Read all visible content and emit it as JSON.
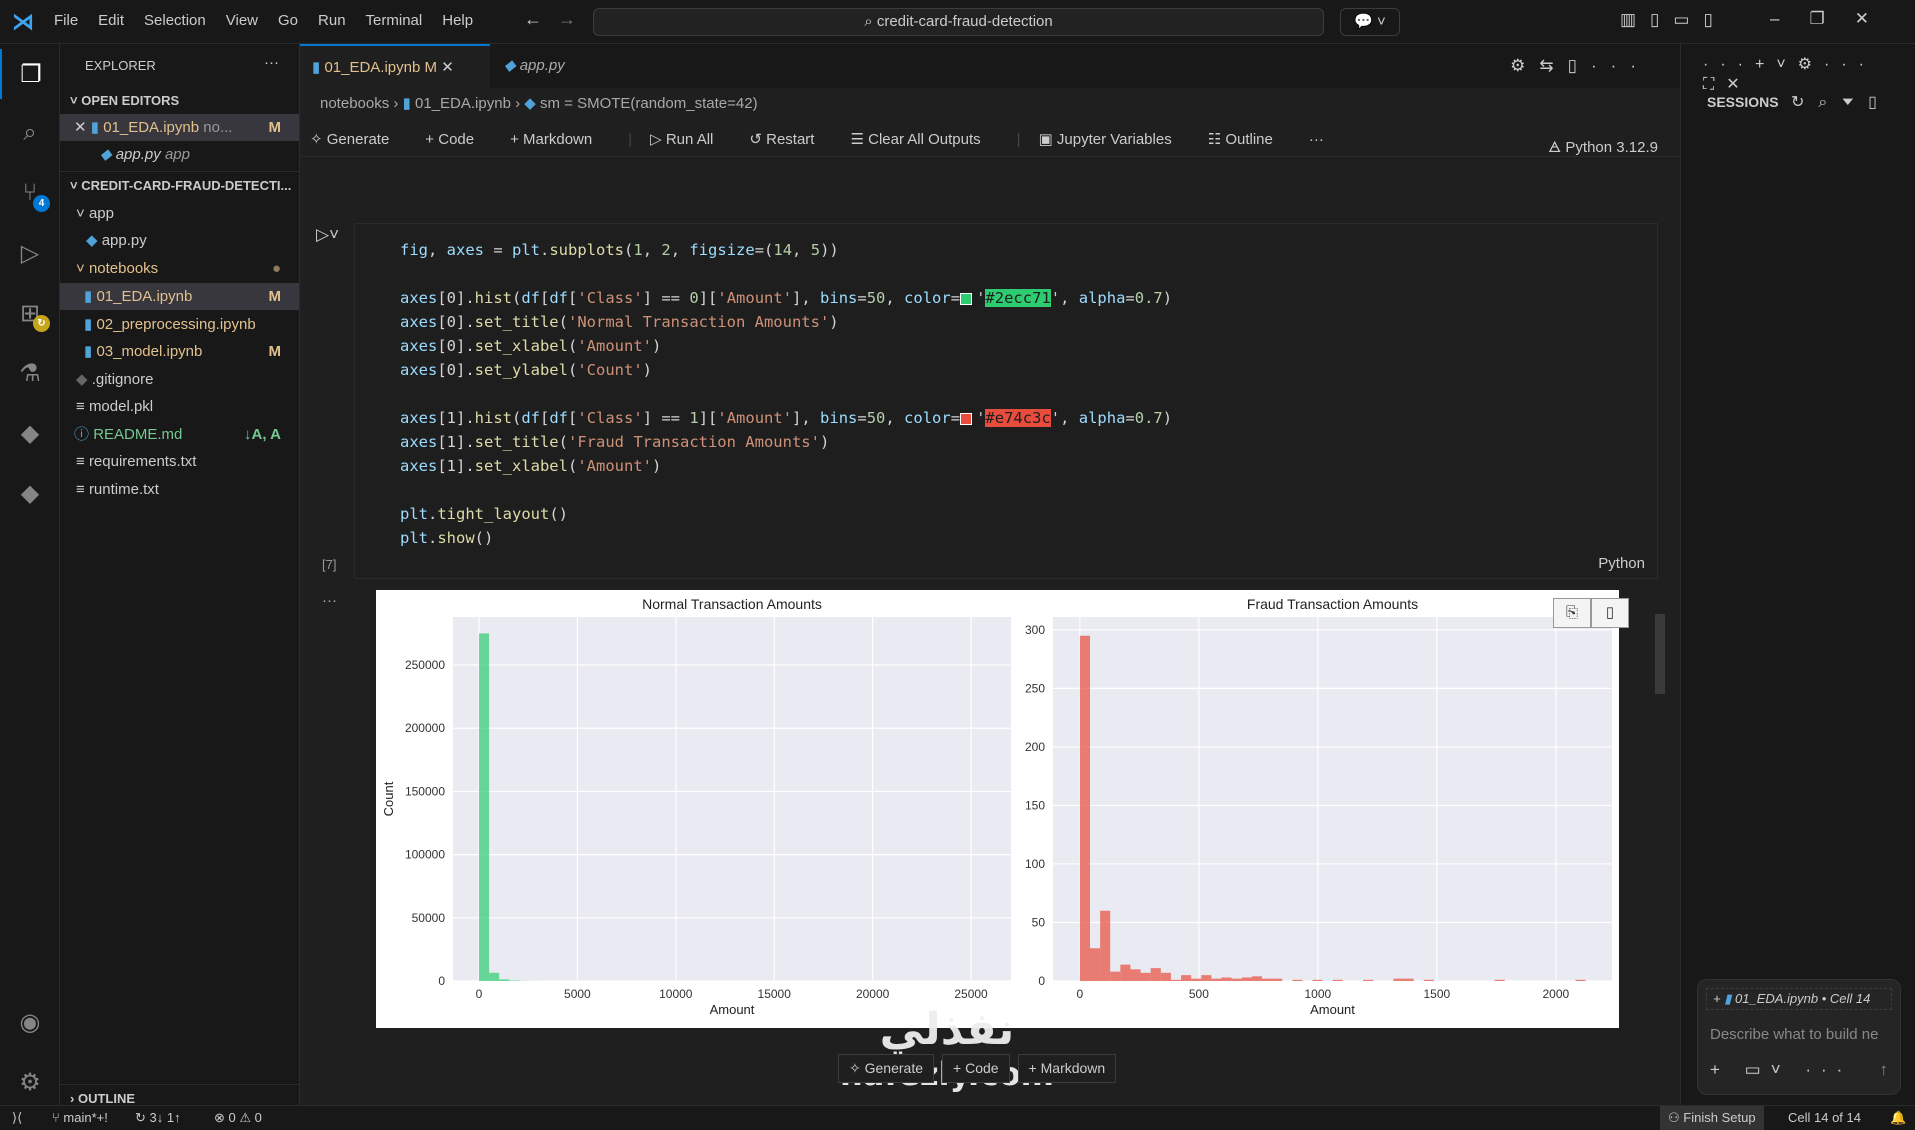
{
  "menu": [
    "File",
    "Edit",
    "Selection",
    "View",
    "Go",
    "Run",
    "Terminal",
    "Help"
  ],
  "search": "credit-card-fraud-detection",
  "explorer": {
    "title": "EXPLORER",
    "open_editors": "OPEN EDITORS",
    "open": [
      {
        "name": "01_EDA.ipynb",
        "desc": "no...",
        "badge": "M"
      },
      {
        "name": "app.py",
        "desc": "app"
      }
    ],
    "project": "CREDIT-CARD-FRAUD-DETECTI...",
    "tree": [
      {
        "name": "app",
        "type": "folder"
      },
      {
        "name": "app.py",
        "type": "py"
      },
      {
        "name": "notebooks",
        "type": "folder"
      },
      {
        "name": "01_EDA.ipynb",
        "badge": "M"
      },
      {
        "name": "02_preprocessing.ipynb"
      },
      {
        "name": "03_model.ipynb",
        "badge": "M"
      },
      {
        "name": ".gitignore"
      },
      {
        "name": "model.pkl"
      },
      {
        "name": "README.md",
        "badge": "↓A, A"
      },
      {
        "name": "requirements.txt"
      },
      {
        "name": "runtime.txt"
      }
    ],
    "outline": "OUTLINE",
    "scm_badge": "4"
  },
  "tabs": [
    {
      "label": "01_EDA.ipynb",
      "badge": "M"
    },
    {
      "label": "app.py"
    }
  ],
  "breadcrumb": [
    "notebooks",
    "01_EDA.ipynb",
    "sm = SMOTE(random_state=42)"
  ],
  "toolbar": {
    "generate": "Generate",
    "code": "Code",
    "markdown": "Markdown",
    "run_all": "Run All",
    "restart": "Restart",
    "clear": "Clear All Outputs",
    "vars": "Jupyter Variables",
    "outline": "Outline",
    "kernel": "Python 3.12.9"
  },
  "cell": {
    "exec": "[7]",
    "lang": "Python",
    "lines": [
      [
        [
          "fig",
          "v"
        ],
        [
          ", ",
          "o"
        ],
        [
          "axes",
          "v"
        ],
        [
          " = ",
          "o"
        ],
        [
          "plt",
          "v"
        ],
        [
          ".",
          "o"
        ],
        [
          "subplots",
          "f"
        ],
        [
          "(",
          "o"
        ],
        [
          "1",
          "n"
        ],
        [
          ", ",
          "o"
        ],
        [
          "2",
          "n"
        ],
        [
          ", ",
          "o"
        ],
        [
          "figsize",
          "v"
        ],
        [
          "=(",
          "o"
        ],
        [
          "14",
          "n"
        ],
        [
          ", ",
          "o"
        ],
        [
          "5",
          "n"
        ],
        [
          "))",
          "o"
        ]
      ],
      [],
      [
        [
          "axes",
          "v"
        ],
        [
          "[0].",
          "o"
        ],
        [
          "hist",
          "f"
        ],
        [
          "(",
          "o"
        ],
        [
          "df",
          "v"
        ],
        [
          "[",
          "o"
        ],
        [
          "df",
          "v"
        ],
        [
          "[",
          "o"
        ],
        [
          "'Class'",
          "s"
        ],
        [
          "] == ",
          "o"
        ],
        [
          "0",
          "n"
        ],
        [
          "][",
          "o"
        ],
        [
          "'Amount'",
          "s"
        ],
        [
          "], ",
          "o"
        ],
        [
          "bins",
          "v"
        ],
        [
          "=",
          "o"
        ],
        [
          "50",
          "n"
        ],
        [
          ", ",
          "o"
        ],
        [
          "color",
          "v"
        ],
        [
          "=",
          "o"
        ],
        [
          "#2ecc71",
          "sw"
        ],
        [
          ", ",
          "o"
        ],
        [
          "alpha",
          "v"
        ],
        [
          "=",
          "o"
        ],
        [
          "0.7",
          "n"
        ],
        [
          ")",
          "o"
        ]
      ],
      [
        [
          "axes",
          "v"
        ],
        [
          "[0].",
          "o"
        ],
        [
          "set_title",
          "f"
        ],
        [
          "(",
          "o"
        ],
        [
          "'Normal Transaction Amounts'",
          "s"
        ],
        [
          ")",
          "o"
        ]
      ],
      [
        [
          "axes",
          "v"
        ],
        [
          "[0].",
          "o"
        ],
        [
          "set_xlabel",
          "f"
        ],
        [
          "(",
          "o"
        ],
        [
          "'Amount'",
          "s"
        ],
        [
          ")",
          "o"
        ]
      ],
      [
        [
          "axes",
          "v"
        ],
        [
          "[0].",
          "o"
        ],
        [
          "set_ylabel",
          "f"
        ],
        [
          "(",
          "o"
        ],
        [
          "'Count'",
          "s"
        ],
        [
          ")",
          "o"
        ]
      ],
      [],
      [
        [
          "axes",
          "v"
        ],
        [
          "[1].",
          "o"
        ],
        [
          "hist",
          "f"
        ],
        [
          "(",
          "o"
        ],
        [
          "df",
          "v"
        ],
        [
          "[",
          "o"
        ],
        [
          "df",
          "v"
        ],
        [
          "[",
          "o"
        ],
        [
          "'Class'",
          "s"
        ],
        [
          "] == ",
          "o"
        ],
        [
          "1",
          "n"
        ],
        [
          "][",
          "o"
        ],
        [
          "'Amount'",
          "s"
        ],
        [
          "], ",
          "o"
        ],
        [
          "bins",
          "v"
        ],
        [
          "=",
          "o"
        ],
        [
          "50",
          "n"
        ],
        [
          ", ",
          "o"
        ],
        [
          "color",
          "v"
        ],
        [
          "=",
          "o"
        ],
        [
          "#e74c3c",
          "sw"
        ],
        [
          ", ",
          "o"
        ],
        [
          "alpha",
          "v"
        ],
        [
          "=",
          "o"
        ],
        [
          "0.7",
          "n"
        ],
        [
          ")",
          "o"
        ]
      ],
      [
        [
          "axes",
          "v"
        ],
        [
          "[1].",
          "o"
        ],
        [
          "set_title",
          "f"
        ],
        [
          "(",
          "o"
        ],
        [
          "'Fraud Transaction Amounts'",
          "s"
        ],
        [
          ")",
          "o"
        ]
      ],
      [
        [
          "axes",
          "v"
        ],
        [
          "[1].",
          "o"
        ],
        [
          "set_xlabel",
          "f"
        ],
        [
          "(",
          "o"
        ],
        [
          "'Amount'",
          "s"
        ],
        [
          ")",
          "o"
        ]
      ],
      [],
      [
        [
          "plt",
          "v"
        ],
        [
          ".",
          "o"
        ],
        [
          "tight_layout",
          "f"
        ],
        [
          "()",
          "o"
        ]
      ],
      [
        [
          "plt",
          "v"
        ],
        [
          ".",
          "o"
        ],
        [
          "show",
          "f"
        ],
        [
          "()",
          "o"
        ]
      ]
    ]
  },
  "chart_data": [
    {
      "type": "bar",
      "title": "Normal Transaction Amounts",
      "xlabel": "Amount",
      "ylabel": "Count",
      "color": "#2ecc71",
      "alpha": 0.7,
      "xlim": [
        -1320,
        27030
      ],
      "ylim": [
        0,
        288000
      ],
      "xticks": [
        0,
        5000,
        10000,
        15000,
        20000,
        25000
      ],
      "yticks": [
        0,
        50000,
        100000,
        150000,
        200000,
        250000
      ],
      "bin_width": 514,
      "values": [
        275000,
        6500,
        1300,
        400,
        150,
        60,
        30,
        15,
        8,
        5,
        3,
        2,
        1,
        1,
        1,
        0,
        0,
        0,
        0,
        0,
        0,
        0,
        0,
        0,
        0,
        0,
        0,
        0,
        0,
        0,
        0,
        0,
        0,
        0,
        0,
        0,
        0,
        0,
        0,
        0,
        0,
        0,
        0,
        0,
        0,
        0,
        0,
        0,
        0,
        1
      ],
      "grid": true
    },
    {
      "type": "bar",
      "title": "Fraud Transaction Amounts",
      "xlabel": "Amount",
      "ylabel": "",
      "color": "#e74c3c",
      "alpha": 0.7,
      "xlim": [
        -113,
        2236
      ],
      "ylim": [
        0,
        311
      ],
      "xticks": [
        0,
        500,
        1000,
        1500,
        2000
      ],
      "yticks": [
        0,
        50,
        100,
        150,
        200,
        250,
        300
      ],
      "bin_width": 42.5,
      "values": [
        295,
        28,
        60,
        8,
        14,
        10,
        7,
        11,
        7,
        1,
        5,
        2,
        5,
        2,
        3,
        2,
        3,
        4,
        2,
        2,
        0,
        1,
        0,
        1,
        0,
        1,
        0,
        0,
        1,
        0,
        0,
        2,
        2,
        0,
        1,
        0,
        0,
        0,
        0,
        0,
        0,
        1,
        0,
        0,
        0,
        0,
        0,
        0,
        0,
        1
      ],
      "grid": true
    }
  ],
  "sessions": {
    "title": "SESSIONS",
    "context": "01_EDA.ipynb • Cell 14",
    "placeholder": "Describe what to build ne"
  },
  "bottom_bar": {
    "generate": "Generate",
    "code": "Code",
    "markdown": "Markdown"
  },
  "status": {
    "branch": "main*+!",
    "sync": "3↓ 1↑",
    "problems": "⊗ 0 ⚠ 0",
    "finish": "Finish Setup",
    "cell": "Cell 14 of 14"
  },
  "watermark": {
    "arabic": "نفذلي",
    "site": "nafezly.com"
  }
}
